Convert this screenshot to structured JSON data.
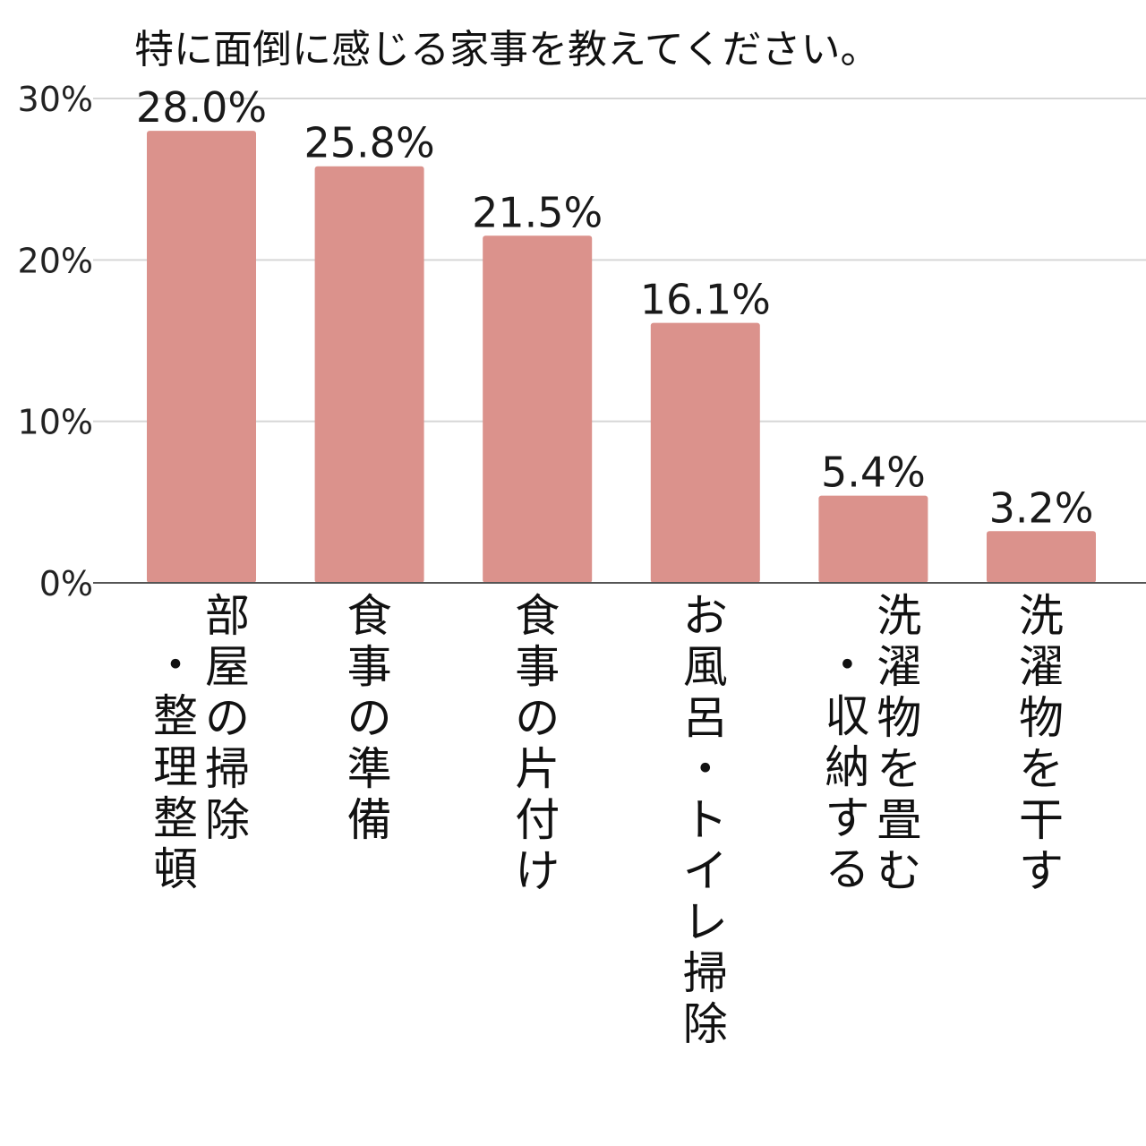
{
  "chart_data": {
    "type": "bar",
    "title": "特に面倒に感じる家事を教えてください。",
    "xlabel": "",
    "ylabel": "",
    "ylim": [
      0,
      30
    ],
    "yticks": [
      {
        "value": 0,
        "label": "0%"
      },
      {
        "value": 10,
        "label": "10%"
      },
      {
        "value": 20,
        "label": "20%"
      },
      {
        "value": 30,
        "label": "30%"
      }
    ],
    "grid": true,
    "bar_color": "#db928c",
    "grid_color": "#d6d6d6",
    "axis_color": "#555555",
    "categories": [
      [
        "部屋の掃除",
        "・整理整頓"
      ],
      [
        "食事の準備"
      ],
      [
        "食事の片付け"
      ],
      [
        "お風呂・トイレ掃除"
      ],
      [
        "洗濯物を畳む",
        "・収納する"
      ],
      [
        "洗濯物を干す"
      ]
    ],
    "values": [
      28.0,
      25.8,
      21.5,
      16.1,
      5.4,
      3.2
    ],
    "value_labels": [
      "28.0%",
      "25.8%",
      "21.5%",
      "16.1%",
      "5.4%",
      "3.2%"
    ]
  }
}
